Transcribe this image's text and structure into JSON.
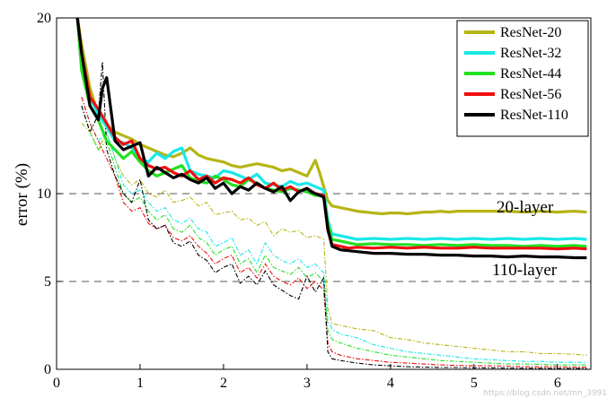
{
  "chart_data": {
    "type": "line",
    "title": "",
    "xlabel": "",
    "ylabel": "error (%)",
    "xlim": [
      0,
      6.4
    ],
    "ylim": [
      0,
      20
    ],
    "xticks": [
      0,
      1,
      2,
      3,
      4,
      5,
      6
    ],
    "yticks": [
      0,
      5,
      10,
      20
    ],
    "grid": "dashed horizontal lines at y = 5, 10, 20",
    "legend_position": "top-right",
    "annotations": [
      {
        "text": "20-layer",
        "x": 5.4,
        "y": 9.1
      },
      {
        "text": "110-layer",
        "x": 5.3,
        "y": 5.5
      }
    ],
    "watermark": "https://blog.csdn.net/mn_39916476",
    "series": [
      {
        "name": "ResNet-20",
        "color": "#b5b517",
        "test_x": [
          0.25,
          0.3,
          0.4,
          0.5,
          0.6,
          0.7,
          0.8,
          0.9,
          1.0,
          1.1,
          1.2,
          1.3,
          1.4,
          1.5,
          1.6,
          1.7,
          1.8,
          1.9,
          2.0,
          2.1,
          2.2,
          2.3,
          2.4,
          2.5,
          2.6,
          2.7,
          2.8,
          2.9,
          3.0,
          3.1,
          3.15,
          3.2,
          3.25,
          3.3,
          3.4,
          3.5,
          3.6,
          3.7,
          3.8,
          3.9,
          4.0,
          4.1,
          4.2,
          4.3,
          4.4,
          4.5,
          4.6,
          4.7,
          4.8,
          4.9,
          5.0,
          5.2,
          5.4,
          5.6,
          5.8,
          6.0,
          6.2,
          6.35
        ],
        "test_y": [
          20,
          18.5,
          16,
          14.5,
          13.9,
          13.5,
          13.3,
          13.1,
          12.8,
          12.6,
          12.4,
          12.2,
          12.1,
          12.3,
          12.6,
          12.2,
          12.0,
          11.9,
          11.8,
          11.6,
          11.5,
          11.6,
          11.7,
          11.6,
          11.5,
          11.3,
          11.4,
          11.2,
          11.0,
          11.9,
          11.2,
          10.4,
          9.6,
          9.3,
          9.2,
          9.1,
          9.0,
          8.95,
          8.9,
          8.85,
          8.9,
          8.9,
          8.85,
          8.9,
          8.95,
          8.95,
          9.0,
          8.95,
          9.0,
          9.0,
          9.0,
          9.0,
          9.0,
          8.95,
          9.0,
          8.95,
          9.0,
          8.95
        ],
        "train_x": [
          0.3,
          0.4,
          0.5,
          0.6,
          0.7,
          0.8,
          0.9,
          1.0,
          1.1,
          1.2,
          1.3,
          1.4,
          1.5,
          1.6,
          1.7,
          1.8,
          1.9,
          2.0,
          2.1,
          2.2,
          2.3,
          2.4,
          2.5,
          2.6,
          2.7,
          2.8,
          2.9,
          3.0,
          3.1,
          3.2,
          3.25,
          3.3,
          3.4,
          3.6,
          3.8,
          4.0,
          4.2,
          4.4,
          4.6,
          4.8,
          5.0,
          5.2,
          5.4,
          5.6,
          5.8,
          6.0,
          6.2,
          6.35
        ],
        "train_y": [
          14,
          13.5,
          12.5,
          13.5,
          12.0,
          11.0,
          10.5,
          10.8,
          10.0,
          9.8,
          10.2,
          9.5,
          9.6,
          9.8,
          9.3,
          9.5,
          8.8,
          8.9,
          9.0,
          8.5,
          8.6,
          8.2,
          8.4,
          7.6,
          8.0,
          7.8,
          7.9,
          7.5,
          7.6,
          7.4,
          3.5,
          2.6,
          2.5,
          2.3,
          2.2,
          1.8,
          1.7,
          1.5,
          1.4,
          1.3,
          1.2,
          1.1,
          1.0,
          1.0,
          0.9,
          0.9,
          0.85,
          0.8
        ]
      },
      {
        "name": "ResNet-32",
        "color": "#19e8e8",
        "test_x": [
          0.25,
          0.3,
          0.4,
          0.5,
          0.6,
          0.7,
          0.8,
          0.9,
          1.0,
          1.1,
          1.2,
          1.3,
          1.4,
          1.5,
          1.6,
          1.7,
          1.8,
          1.9,
          2.0,
          2.1,
          2.2,
          2.3,
          2.4,
          2.5,
          2.6,
          2.7,
          2.8,
          2.9,
          3.0,
          3.1,
          3.2,
          3.25,
          3.3,
          3.4,
          3.5,
          3.6,
          3.8,
          4.0,
          4.2,
          4.4,
          4.6,
          4.8,
          5.0,
          5.2,
          5.4,
          5.6,
          5.8,
          6.0,
          6.2,
          6.35
        ],
        "test_y": [
          20,
          17.5,
          15.5,
          14.5,
          13.8,
          13.0,
          12.9,
          12.6,
          12.0,
          11.8,
          12.3,
          12.0,
          12.4,
          12.6,
          11.3,
          11.1,
          11.0,
          10.9,
          11.3,
          11.2,
          11.0,
          10.8,
          11.1,
          10.6,
          10.5,
          10.4,
          10.7,
          10.5,
          10.6,
          10.4,
          10.2,
          8.5,
          7.7,
          7.6,
          7.5,
          7.4,
          7.45,
          7.4,
          7.45,
          7.4,
          7.45,
          7.4,
          7.45,
          7.4,
          7.45,
          7.4,
          7.45,
          7.4,
          7.45,
          7.4
        ],
        "train_x": [
          0.3,
          0.4,
          0.5,
          0.6,
          0.7,
          0.8,
          0.9,
          1.0,
          1.1,
          1.2,
          1.3,
          1.4,
          1.5,
          1.6,
          1.7,
          1.8,
          1.9,
          2.0,
          2.1,
          2.2,
          2.3,
          2.4,
          2.5,
          2.6,
          2.7,
          2.8,
          2.9,
          3.0,
          3.1,
          3.2,
          3.25,
          3.3,
          3.4,
          3.6,
          3.8,
          4.0,
          4.2,
          4.4,
          4.6,
          4.8,
          5.0,
          5.2,
          5.4,
          5.6,
          5.8,
          6.0,
          6.2,
          6.35
        ],
        "train_y": [
          15.5,
          14.0,
          13.0,
          13.5,
          12.0,
          10.5,
          10.0,
          10.2,
          9.5,
          9.0,
          9.2,
          8.5,
          8.3,
          8.6,
          8.0,
          7.8,
          7.0,
          7.2,
          7.5,
          6.5,
          6.8,
          6.0,
          7.2,
          6.5,
          6.2,
          6.0,
          6.3,
          5.8,
          6.0,
          5.5,
          2.8,
          2.3,
          2.0,
          1.8,
          1.4,
          1.2,
          1.0,
          0.9,
          0.8,
          0.7,
          0.6,
          0.55,
          0.5,
          0.45,
          0.45,
          0.4,
          0.4,
          0.4
        ]
      },
      {
        "name": "ResNet-44",
        "color": "#22e022",
        "test_x": [
          0.25,
          0.3,
          0.4,
          0.5,
          0.6,
          0.7,
          0.8,
          0.9,
          1.0,
          1.1,
          1.2,
          1.3,
          1.4,
          1.5,
          1.6,
          1.7,
          1.8,
          1.9,
          2.0,
          2.1,
          2.2,
          2.3,
          2.4,
          2.5,
          2.6,
          2.7,
          2.8,
          2.9,
          3.0,
          3.1,
          3.2,
          3.25,
          3.3,
          3.4,
          3.5,
          3.6,
          3.8,
          4.0,
          4.2,
          4.4,
          4.6,
          4.8,
          5.0,
          5.2,
          5.4,
          5.6,
          5.8,
          6.0,
          6.2,
          6.35
        ],
        "test_y": [
          20,
          17.0,
          15.0,
          14.2,
          13.0,
          12.5,
          12.0,
          12.4,
          11.8,
          11.3,
          11.0,
          11.2,
          11.4,
          11.6,
          10.9,
          10.7,
          10.6,
          11.0,
          10.8,
          10.5,
          10.4,
          10.8,
          10.6,
          10.3,
          10.2,
          10.1,
          10.3,
          10.2,
          10.1,
          9.9,
          9.9,
          8.3,
          7.4,
          7.3,
          7.2,
          7.1,
          7.15,
          7.1,
          7.1,
          7.05,
          7.1,
          7.05,
          7.1,
          7.05,
          7.05,
          7.0,
          7.05,
          7.0,
          7.05,
          7.0
        ],
        "train_x": [
          0.3,
          0.4,
          0.5,
          0.6,
          0.7,
          0.8,
          0.9,
          1.0,
          1.1,
          1.2,
          1.3,
          1.4,
          1.5,
          1.6,
          1.7,
          1.8,
          1.9,
          2.0,
          2.1,
          2.2,
          2.3,
          2.4,
          2.5,
          2.6,
          2.7,
          2.8,
          2.9,
          3.0,
          3.1,
          3.2,
          3.25,
          3.3,
          3.4,
          3.6,
          3.8,
          4.0,
          4.2,
          4.4,
          4.6,
          4.8,
          5.0,
          5.2,
          5.4,
          5.6,
          5.8,
          6.0,
          6.2,
          6.35
        ],
        "train_y": [
          15.0,
          13.5,
          12.5,
          13.0,
          11.5,
          10.0,
          9.5,
          9.8,
          9.0,
          8.5,
          8.8,
          8.0,
          7.8,
          8.2,
          7.5,
          7.2,
          6.5,
          6.8,
          7.0,
          6.0,
          6.3,
          5.5,
          6.5,
          5.8,
          5.6,
          5.4,
          5.8,
          5.2,
          5.5,
          5.0,
          2.2,
          1.7,
          1.5,
          1.2,
          1.0,
          0.8,
          0.7,
          0.6,
          0.5,
          0.45,
          0.4,
          0.35,
          0.3,
          0.3,
          0.28,
          0.25,
          0.25,
          0.25
        ]
      },
      {
        "name": "ResNet-56",
        "color": "#ee0f0f",
        "test_x": [
          0.25,
          0.3,
          0.4,
          0.5,
          0.6,
          0.7,
          0.8,
          0.9,
          1.0,
          1.1,
          1.2,
          1.3,
          1.4,
          1.5,
          1.6,
          1.7,
          1.8,
          1.9,
          2.0,
          2.1,
          2.2,
          2.3,
          2.4,
          2.5,
          2.6,
          2.7,
          2.8,
          2.9,
          3.0,
          3.1,
          3.2,
          3.25,
          3.3,
          3.4,
          3.5,
          3.6,
          3.8,
          4.0,
          4.2,
          4.4,
          4.6,
          4.8,
          5.0,
          5.2,
          5.4,
          5.6,
          5.8,
          6.0,
          6.2,
          6.35
        ],
        "test_y": [
          20,
          18.0,
          15.5,
          14.8,
          14.0,
          13.2,
          12.8,
          13.0,
          12.0,
          11.6,
          11.4,
          11.5,
          11.2,
          11.0,
          11.3,
          10.8,
          11.0,
          10.6,
          10.9,
          10.8,
          10.6,
          10.9,
          10.5,
          10.3,
          10.6,
          10.2,
          10.4,
          10.1,
          10.3,
          10.0,
          9.9,
          7.9,
          7.1,
          7.0,
          6.9,
          6.95,
          6.9,
          6.95,
          6.9,
          6.95,
          6.9,
          6.9,
          6.95,
          6.9,
          6.9,
          6.9,
          6.9,
          6.85,
          6.9,
          6.85
        ],
        "train_x": [
          0.3,
          0.4,
          0.5,
          0.6,
          0.7,
          0.8,
          0.9,
          1.0,
          1.1,
          1.2,
          1.3,
          1.4,
          1.5,
          1.6,
          1.7,
          1.8,
          1.9,
          2.0,
          2.1,
          2.2,
          2.3,
          2.4,
          2.5,
          2.6,
          2.7,
          2.8,
          2.9,
          3.0,
          3.1,
          3.2,
          3.25,
          3.3,
          3.4,
          3.6,
          3.8,
          4.0,
          4.2,
          4.4,
          4.6,
          4.8,
          5.0,
          5.2,
          5.4,
          5.6,
          5.8,
          6.0,
          6.2,
          6.35
        ],
        "train_y": [
          15.5,
          14.0,
          13.0,
          12.0,
          11.0,
          9.5,
          9.0,
          9.2,
          8.3,
          8.0,
          8.2,
          7.5,
          7.3,
          7.6,
          7.0,
          6.6,
          6.0,
          6.3,
          6.5,
          5.5,
          5.8,
          5.2,
          6.0,
          5.3,
          5.0,
          4.8,
          5.2,
          4.6,
          5.0,
          4.5,
          1.5,
          1.0,
          0.8,
          0.6,
          0.5,
          0.4,
          0.35,
          0.3,
          0.25,
          0.22,
          0.2,
          0.2,
          0.18,
          0.15,
          0.15,
          0.15,
          0.12,
          0.12
        ]
      },
      {
        "name": "ResNet-110",
        "color": "#000000",
        "test_x": [
          0.25,
          0.3,
          0.4,
          0.5,
          0.55,
          0.6,
          0.7,
          0.8,
          0.9,
          1.0,
          1.1,
          1.2,
          1.3,
          1.4,
          1.5,
          1.6,
          1.7,
          1.8,
          1.9,
          2.0,
          2.1,
          2.2,
          2.3,
          2.4,
          2.5,
          2.6,
          2.7,
          2.8,
          2.9,
          3.0,
          3.05,
          3.1,
          3.2,
          3.25,
          3.3,
          3.4,
          3.5,
          3.6,
          3.8,
          4.0,
          4.2,
          4.4,
          4.6,
          4.8,
          5.0,
          5.2,
          5.4,
          5.6,
          5.8,
          6.0,
          6.2,
          6.35
        ],
        "test_y": [
          20,
          18.0,
          15.0,
          14.2,
          16.0,
          16.6,
          13.0,
          12.5,
          12.7,
          12.9,
          11.0,
          11.5,
          11.2,
          10.9,
          11.1,
          10.8,
          10.6,
          10.9,
          10.3,
          10.6,
          10.0,
          10.4,
          10.2,
          10.6,
          10.3,
          10.1,
          10.4,
          9.6,
          10.1,
          10.3,
          10.1,
          10.0,
          9.8,
          8.0,
          7.0,
          6.8,
          6.75,
          6.7,
          6.6,
          6.6,
          6.55,
          6.55,
          6.5,
          6.5,
          6.45,
          6.45,
          6.4,
          6.45,
          6.4,
          6.4,
          6.35,
          6.35
        ],
        "train_x": [
          0.3,
          0.4,
          0.5,
          0.55,
          0.6,
          0.7,
          0.8,
          0.9,
          1.0,
          1.1,
          1.2,
          1.3,
          1.4,
          1.5,
          1.6,
          1.7,
          1.8,
          1.9,
          2.0,
          2.1,
          2.2,
          2.3,
          2.4,
          2.5,
          2.6,
          2.7,
          2.8,
          2.9,
          3.0,
          3.1,
          3.2,
          3.25,
          3.3,
          3.4,
          3.6,
          3.8,
          4.0,
          4.2,
          4.4,
          4.6,
          4.8,
          5.0,
          5.2,
          5.4,
          5.6,
          5.8,
          6.0,
          6.2,
          6.35
        ],
        "train_y": [
          15.0,
          13.5,
          14.5,
          17.5,
          12.5,
          11.0,
          10.0,
          9.5,
          10.8,
          8.5,
          8.0,
          8.2,
          7.2,
          7.0,
          7.3,
          6.5,
          6.2,
          5.5,
          5.8,
          6.0,
          4.9,
          5.3,
          4.8,
          5.6,
          4.8,
          4.5,
          4.2,
          4.0,
          5.3,
          4.4,
          5.2,
          1.0,
          0.6,
          0.5,
          0.35,
          0.25,
          0.2,
          0.15,
          0.12,
          0.1,
          0.1,
          0.08,
          0.08,
          0.07,
          0.06,
          0.06,
          0.05,
          0.05,
          0.05
        ]
      }
    ]
  }
}
